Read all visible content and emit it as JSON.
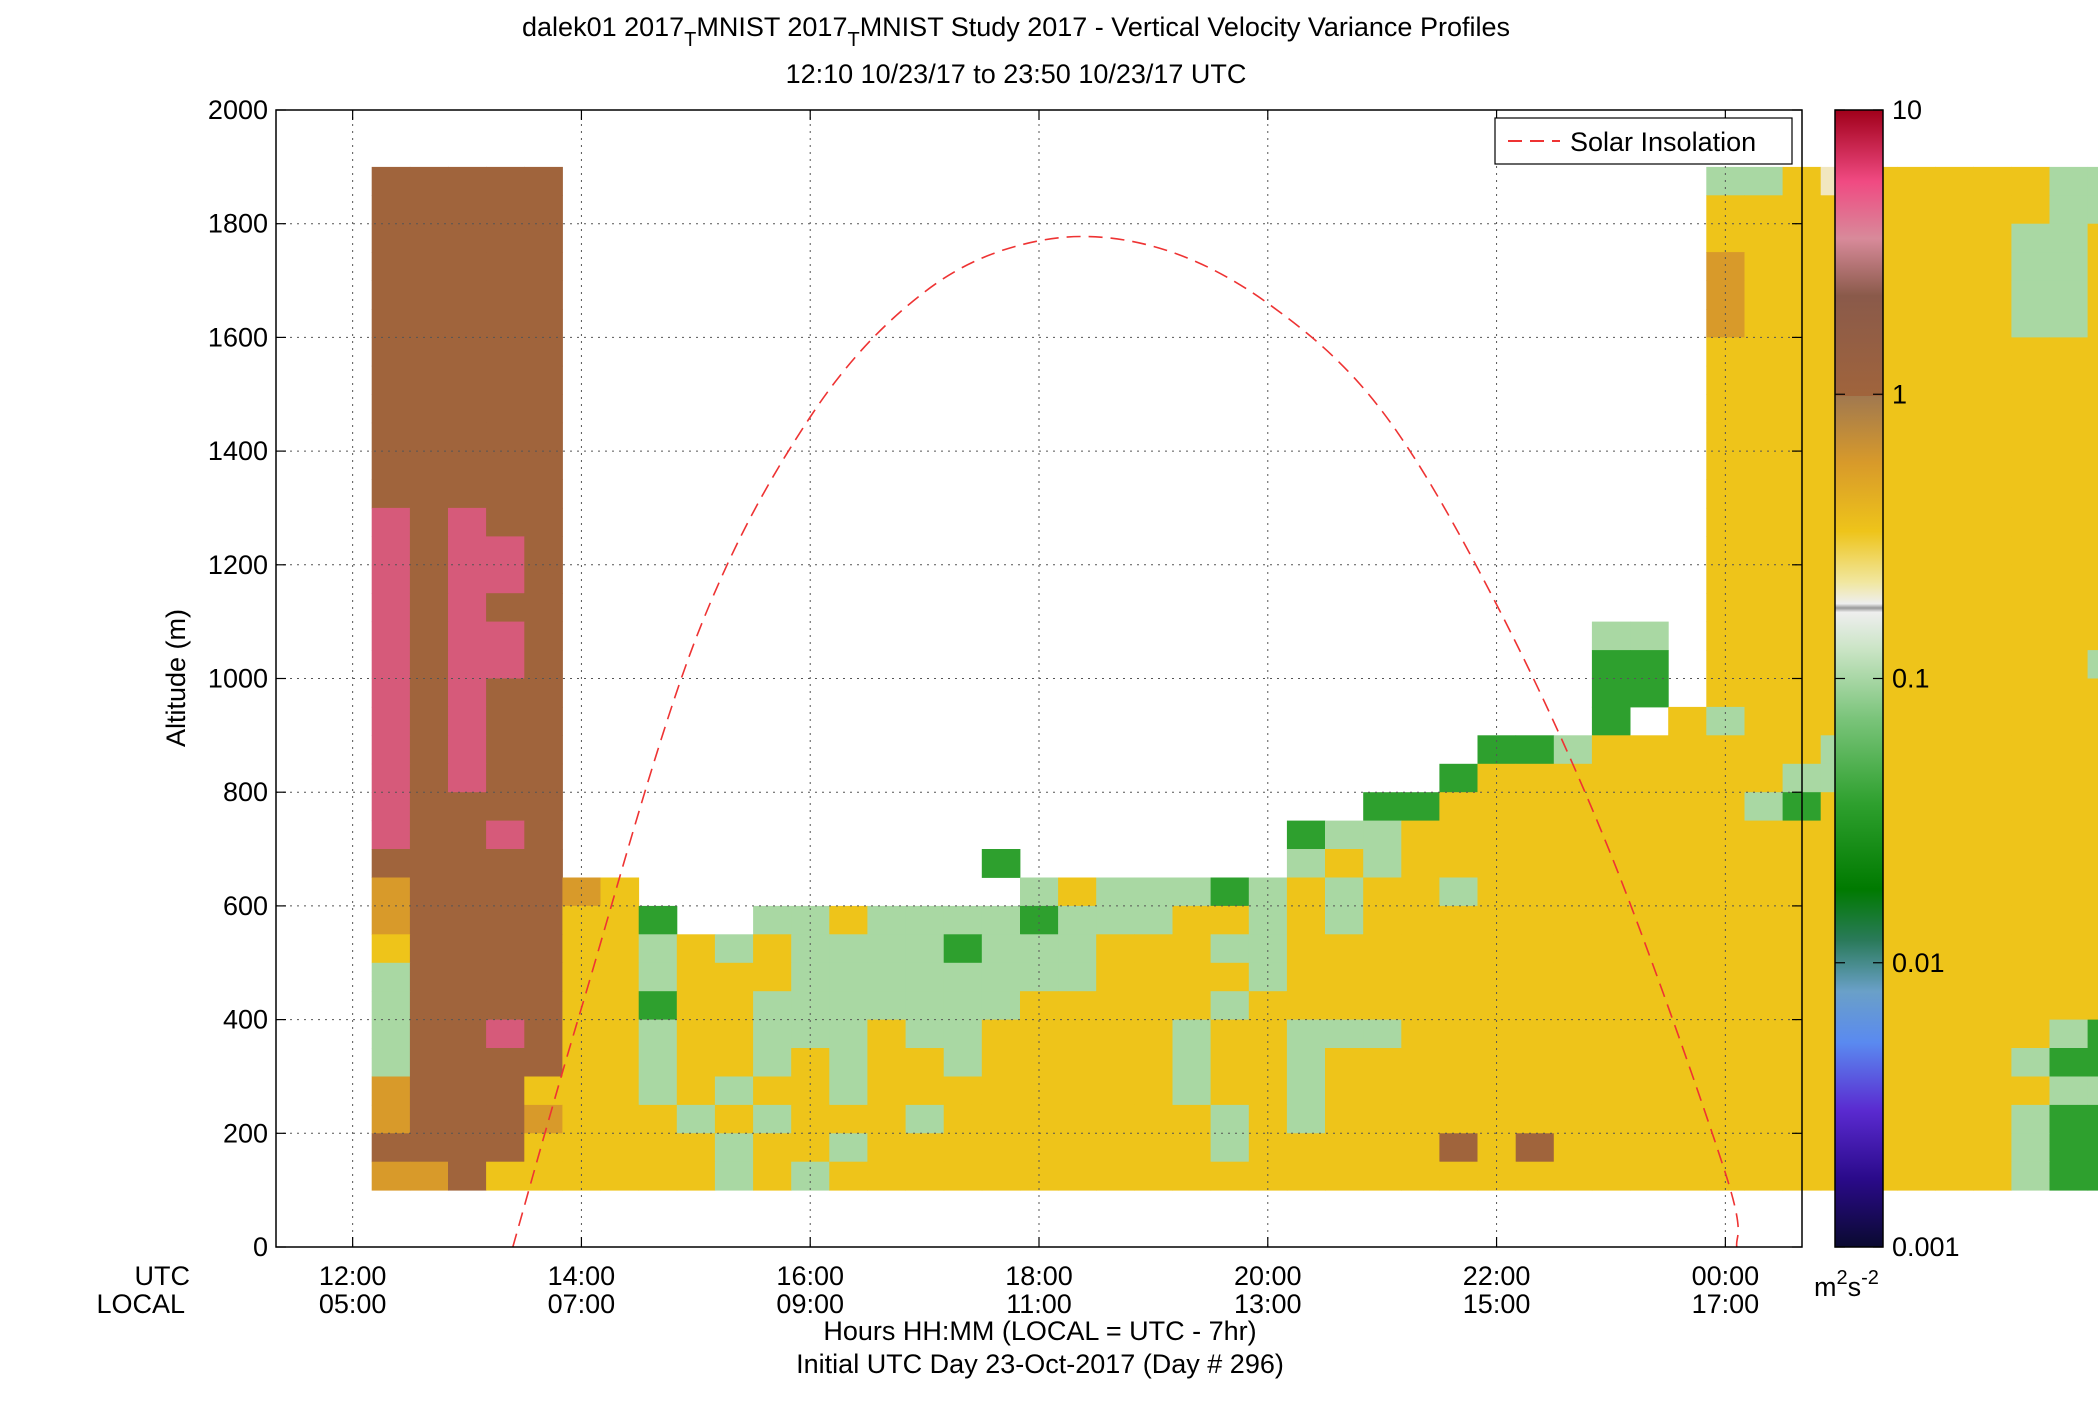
{
  "chart_data": {
    "type": "heatmap",
    "title_line1": "dalek01 2017_MNIST 2017_MNIST Study 2017 - Vertical Velocity Variance Profiles",
    "title_parts": [
      "dalek01 2017",
      "T",
      "MNIST 2017",
      "T",
      "MNIST Study 2017 - Vertical Velocity Variance Profiles"
    ],
    "title_line2": "12:10 10/23/17 to 23:50 10/23/17  UTC",
    "ylabel": "Altitude (m)",
    "xlabel_line1": "Hours HH:MM  (LOCAL = UTC - 7hr)",
    "xlabel_line2": "Initial UTC Day 23-Oct-2017 (Day # 296)",
    "x_row_labels": [
      "UTC",
      "LOCAL"
    ],
    "x_ticks": [
      {
        "utc_hour": 12,
        "utc": "12:00",
        "local": "05:00"
      },
      {
        "utc_hour": 14,
        "utc": "14:00",
        "local": "07:00"
      },
      {
        "utc_hour": 16,
        "utc": "16:00",
        "local": "09:00"
      },
      {
        "utc_hour": 18,
        "utc": "18:00",
        "local": "11:00"
      },
      {
        "utc_hour": 20,
        "utc": "20:00",
        "local": "13:00"
      },
      {
        "utc_hour": 22,
        "utc": "22:00",
        "local": "15:00"
      },
      {
        "utc_hour": 24,
        "utc": "00:00",
        "local": "17:00"
      }
    ],
    "xlim_utc_hours": [
      11.33,
      24.67
    ],
    "ylim": [
      0,
      2000
    ],
    "y_ticks": [
      0,
      200,
      400,
      600,
      800,
      1000,
      1200,
      1400,
      1600,
      1800,
      2000
    ],
    "grid": true,
    "legend": {
      "position": "top-right",
      "entries": [
        "Solar Insolation"
      ]
    },
    "colorbar": {
      "scale": "log",
      "range": [
        0.001,
        10
      ],
      "tick_labels": [
        "10",
        "1",
        "0.1",
        "0.01",
        "0.001"
      ],
      "tick_values": [
        10,
        1,
        0.1,
        0.01,
        0.001
      ],
      "units_base": "m",
      "units_sup1": "2",
      "units_mid": "s",
      "units_sup2": "-2"
    },
    "solar_insolation": {
      "color": "#ee3333",
      "points": [
        [
          13.4,
          0
        ],
        [
          14.0,
          420
        ],
        [
          15.0,
          1070
        ],
        [
          16.0,
          1460
        ],
        [
          17.0,
          1680
        ],
        [
          18.0,
          1770
        ],
        [
          19.0,
          1760
        ],
        [
          20.0,
          1660
        ],
        [
          21.0,
          1470
        ],
        [
          22.0,
          1130
        ],
        [
          23.0,
          690
        ],
        [
          24.0,
          130
        ],
        [
          24.1,
          0
        ]
      ]
    },
    "time_start_utc": 12.167,
    "time_step_minutes": 20,
    "altitude_start_m": 100,
    "altitude_step_m": 50,
    "heatmap_rows_top_to_bottom": [
      "BBBBB..............................ggYTYYYYYgg......",
      "BBBBB..............................YYYYYYYYYgg......",
      "BBBBB..............................YYYYYYYYggYYgYY..",
      "BBBBB..............................OYYYYYYYggYYgYYY.",
      "BBBBB..............................OYYYYYYYggYYgYYY.",
      "BBBBB..............................OYYYYYYYggYYYYYY.",
      "BBBBB..............................YYYYYYYYYYYYgYYY.",
      "BBBBB..............................YYYYYYYYYYYYYYYY.",
      "BBBBB..............................YYYYYYYYYYYYYYYY.",
      "BBBBB..............................YYYYYYYYYYYYYYYY.",
      "BBBBB..............................YYYYYYYYYYYYYYYY.",
      "BBBBB..............................YYYYYYYYYYYYYYYY.",
      "MBMBB..............................YYYYYYYYYYYYYYYY.",
      "MBMMB..............................YYYYYYYYYYYYYYYY.",
      "MBMMB..............................YYYYYYYYYYYYYYYY.",
      "MBMBB..............................YYYYYYYYYYYYYYYY.",
      "MBMMB...........................gg.YYYYYYYYYYYYYgYY.",
      "MBMMB...........................GG.YYYYYYYYYYgYYYYY.",
      "MBMBB...........................GG.YYYYYYYYYYYYGgYY.",
      "MBMBB...........................G.YgYYYYYYYYYYYgGG.",
      "MBMBB........................GGgYYYYYYgYYYYYYYGG.",
      "MBMBB.......................GYYYYYYYYggYYYYYYYGGG.",
      "MBBBB.....................GGYYYYYYYYgGYYYYYYYYYGG.",
      "MBBMB...................GggYYYYYYYYYYYYYYYYYYYGgg.",
      "BBBBB...........G.......gYgYYYYYYYYYYYYYYYYYYYgGg.",
      "OBBBBOY..........gYgggGgYgYYgYYYYYYYYYYYYYYYYYGG.",
      "OBBBBYYG..ggYggggGgggYYgYgYYYYYYYYYYYYYYYYYYYYGG.",
      "YBBBBYYgYgYggggGgggYYYggYYYYYYYYYYYYYYYYYYYYYYgG.",
      "gBBBBYYgYYYggggggggYYYYgYYYYYYYYYYYYYYYYYYYYYYgG.",
      "gBBBBYYGYYgggggggYYYYYgYYYYYYYYYYYYYYYYYYYYYYYgG.",
      "gBBMBYYgYYgggYggYYYYYgYYgggYYYYYYYYYYYYYYYYYgGG.",
      "gBBBBYYgYYgYgYYgYYYYYgYYgYYYYYYYYYYYYYYYYYYgGG.",
      "OBBBYYYgYgYYgYYYYYYYYgYYgYYYYYYYYYYYYYYYYYYYgg.",
      "OBBBOYYYgYgYYYgYYYYYYYgYgYYYYYYYYYYYYYYYYYYgGG.",
      "BBBBYYYYYgYYgYYYYYYYYYgYYYYYBYBYYYYYYYYYYYYgGG.",
      "OOBYYYYYYgYgYYYYYYYYYYYYYYYYYYYYYYYYYYYYYYYgGG."
    ],
    "color_key": {
      "B": "#a0643c",
      "M": "#d65a7a",
      "O": "#d89a2a",
      "Y": "#eec41a",
      "T": "#f1e7c0",
      "g": "#a9d8a3",
      "G": "#2ea02e",
      ".": "none"
    }
  },
  "colors": {
    "grid": "#555555",
    "axis": "#000000",
    "solar_line": "#ee3333"
  }
}
